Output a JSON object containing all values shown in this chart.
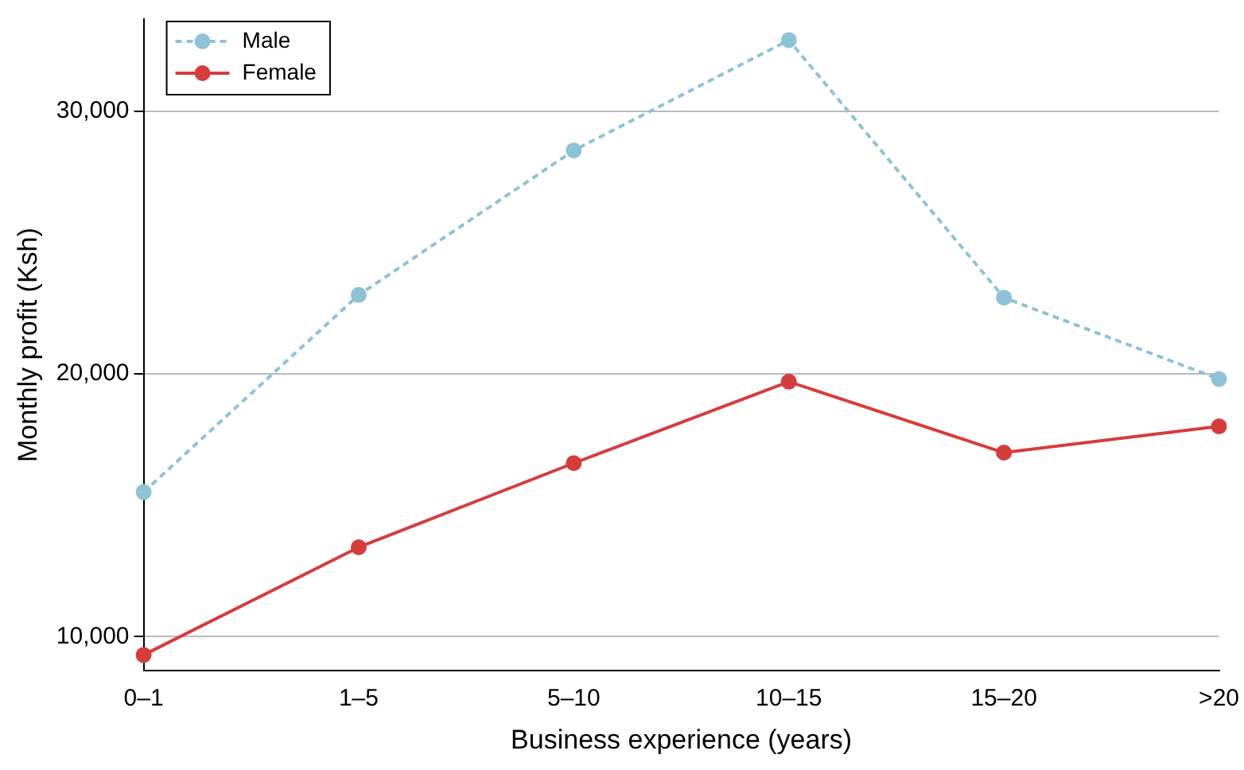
{
  "chart_data": {
    "type": "line",
    "xlabel": "Business experience (years)",
    "ylabel": "Monthly profit (Ksh)",
    "categories": [
      "0–1",
      "1–5",
      "5–10",
      "10–15",
      "15–20",
      ">20"
    ],
    "series": [
      {
        "name": "Male",
        "color": "#8ec3d6",
        "line_style": "dashed",
        "values": [
          15500,
          23000,
          28500,
          32700,
          22900,
          19800
        ]
      },
      {
        "name": "Female",
        "color": "#d63c3c",
        "line_style": "solid",
        "values": [
          9300,
          13400,
          16600,
          19700,
          17000,
          18000
        ]
      }
    ],
    "ylim": [
      8700,
      33500
    ],
    "yticks": [
      {
        "value": 10000,
        "label": "10,000"
      },
      {
        "value": 20000,
        "label": "20,000"
      },
      {
        "value": 30000,
        "label": "30,000"
      }
    ],
    "grid": "y",
    "legend": "top left",
    "marker": "circle"
  }
}
